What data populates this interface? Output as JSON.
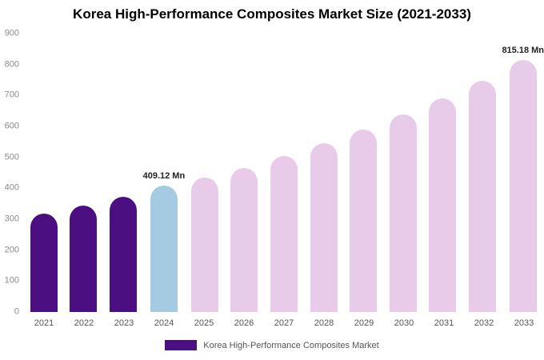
{
  "title": "Korea High-Performance Composites Market Size (2021-2033)",
  "legend": {
    "label": "Korea High-Performance Composites Market",
    "color": "#4b0f82"
  },
  "colors": {
    "dark_purple": "#4b0f82",
    "light_blue": "#a5cbe2",
    "pink": "#e8cbe9",
    "axis_text": "#8a8a8a",
    "x_text": "#555555"
  },
  "chart_data": {
    "type": "bar",
    "title": "Korea High-Performance Composites Market Size (2021-2033)",
    "xlabel": "",
    "ylabel": "",
    "ylim": [
      0,
      900
    ],
    "y_ticks": [
      0,
      100,
      200,
      300,
      400,
      500,
      600,
      700,
      800,
      900
    ],
    "grid": false,
    "legend_position": "bottom",
    "categories": [
      "2021",
      "2022",
      "2023",
      "2024",
      "2025",
      "2026",
      "2027",
      "2028",
      "2029",
      "2030",
      "2031",
      "2032",
      "2033"
    ],
    "values": [
      318,
      345,
      373,
      409.12,
      434,
      466,
      505,
      545,
      590,
      638,
      690,
      748,
      815.18
    ],
    "bar_colors": [
      "#4b0f82",
      "#4b0f82",
      "#4b0f82",
      "#a5cbe2",
      "#e8cbe9",
      "#e8cbe9",
      "#e8cbe9",
      "#e8cbe9",
      "#e8cbe9",
      "#e8cbe9",
      "#e8cbe9",
      "#e8cbe9",
      "#e8cbe9"
    ],
    "annotations": [
      {
        "category": "2024",
        "text": "409.12 Mn"
      },
      {
        "category": "2033",
        "text": "815.18 Mn"
      }
    ]
  }
}
